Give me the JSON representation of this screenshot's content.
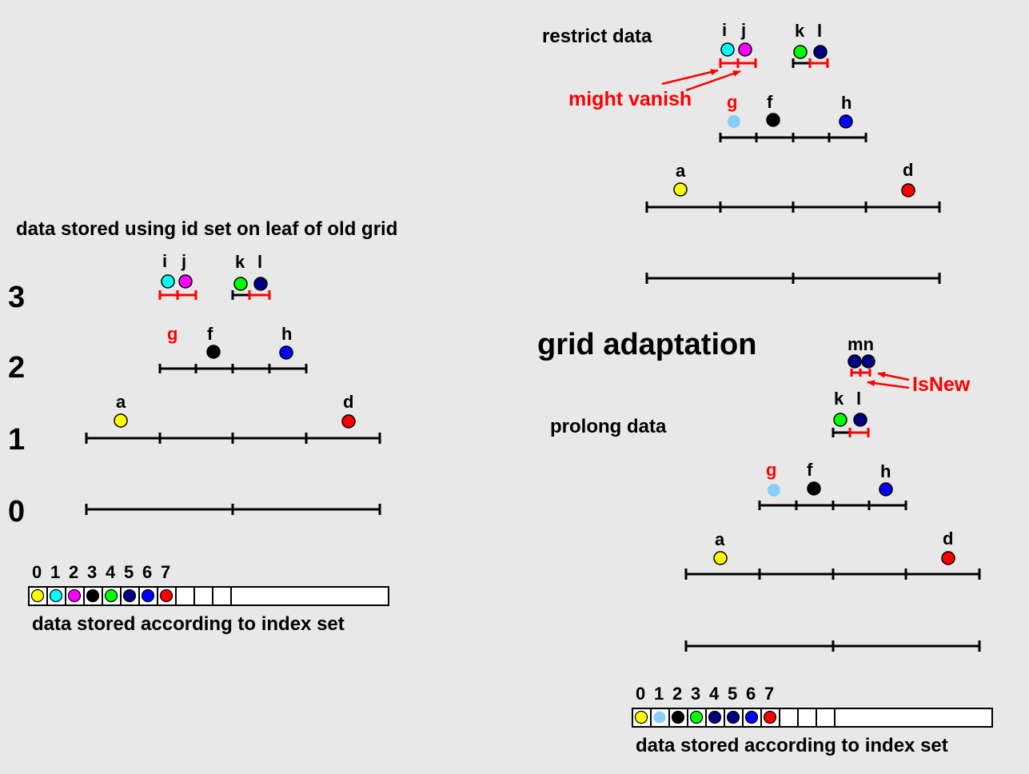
{
  "left": {
    "heading": "data stored using id set on leaf of old grid",
    "levels": [
      "3",
      "2",
      "1",
      "0"
    ],
    "points": {
      "i": "i",
      "j": "j",
      "k": "k",
      "l": "l",
      "g": "g",
      "f": "f",
      "h": "h",
      "a": "a",
      "d": "d"
    },
    "array_indices": [
      "0",
      "1",
      "2",
      "3",
      "4",
      "5",
      "6",
      "7"
    ],
    "array_colors": [
      "#ffff00",
      "#00ffff",
      "#ff00ff",
      "#000000",
      "#00ff00",
      "#000080",
      "#0000ff",
      "#ff0000"
    ],
    "array_caption": "data stored according to index set"
  },
  "right": {
    "restrict_label": "restrict data",
    "might_vanish": "might vanish",
    "grid_adaptation": "grid adaptation",
    "prolong_label": "prolong data",
    "isnew": "IsNew",
    "points_top": {
      "i": "i",
      "j": "j",
      "k": "k",
      "l": "l",
      "g": "g",
      "f": "f",
      "h": "h",
      "a": "a",
      "d": "d"
    },
    "points_bottom": {
      "mn": "mn",
      "k": "k",
      "l": "l",
      "g": "g",
      "f": "f",
      "h": "h",
      "a": "a",
      "d": "d"
    },
    "array_indices": [
      "0",
      "1",
      "2",
      "3",
      "4",
      "5",
      "6",
      "7"
    ],
    "array_colors": [
      "#ffff00",
      "#87cefa",
      "#000000",
      "#00ff00",
      "#000080",
      "#000080",
      "#0000ff",
      "#ff0000"
    ],
    "array_caption": "data stored according to index set"
  },
  "colors": {
    "yellow": "#ffff00",
    "cyan": "#00ffff",
    "magenta": "#ff00ff",
    "black": "#000000",
    "green": "#00ff00",
    "navy": "#000080",
    "blue": "#0000ff",
    "red": "#ff0000",
    "lightblue": "#87cefa"
  }
}
